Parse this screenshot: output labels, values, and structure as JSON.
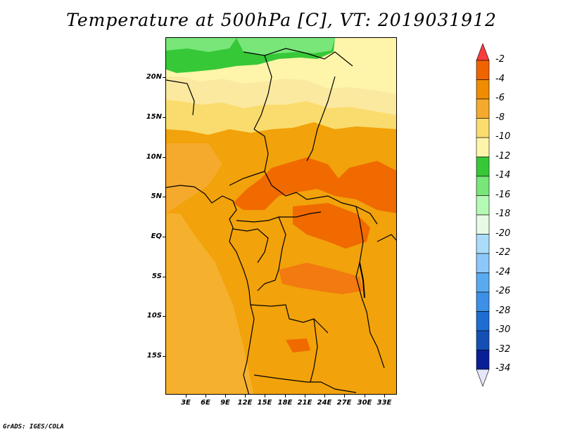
{
  "title": "Temperature at 500hPa [C], VT: 2019031912",
  "credit": "GrADS: IGES/COLA",
  "map": {
    "lat_labels": [
      "20N",
      "15N",
      "10N",
      "5N",
      "EQ",
      "5S",
      "10S",
      "15S"
    ],
    "lon_labels": [
      "3E",
      "6E",
      "9E",
      "12E",
      "15E",
      "18E",
      "21E",
      "24E",
      "27E",
      "30E",
      "33E"
    ]
  },
  "colorbar": {
    "labels": [
      "-2",
      "-4",
      "-6",
      "-8",
      "-10",
      "-12",
      "-14",
      "-16",
      "-18",
      "-20",
      "-22",
      "-24",
      "-26",
      "-28",
      "-30",
      "-32",
      "-34"
    ],
    "colors": [
      "#fa3c3c",
      "#f06400",
      "#f08c00",
      "#f5aa2d",
      "#fadc6e",
      "#fff5aa",
      "#37c837",
      "#78e678",
      "#b4fab4",
      "#e6fae6",
      "#aadcfa",
      "#8cc8fa",
      "#5aaaf0",
      "#3c91e6",
      "#1e6ed2",
      "#1450b4",
      "#0a1e96",
      "#e6e6fa"
    ]
  }
}
